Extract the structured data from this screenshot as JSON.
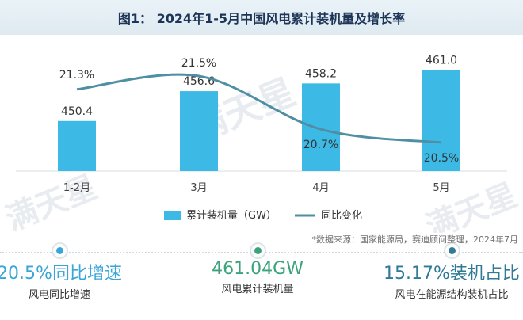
{
  "title": "图1：  2024年1-5月中国风电累计装机量及增长率",
  "source": "*数据来源：国家能源局，赛迪顾问整理，2024年7月",
  "watermark": "满天星",
  "colors": {
    "bar": "#3db9e6",
    "line": "#4e8fa3",
    "kpi1": "#3aa6d8",
    "kpi2": "#3aa37a",
    "kpi3": "#2f7a96"
  },
  "chart_data": {
    "type": "bar",
    "title": "图1：  2024年1-5月中国风电累计装机量及增长率",
    "categories": [
      "1-2月",
      "3月",
      "4月",
      "5月"
    ],
    "series": [
      {
        "name": "累计装机量（GW）",
        "type": "bar",
        "values": [
          450.4,
          456.6,
          458.2,
          461.0
        ],
        "labels": [
          "450.4",
          "456.6",
          "458.2",
          "461.0"
        ]
      },
      {
        "name": "同比变化",
        "type": "line",
        "values": [
          21.3,
          21.5,
          20.7,
          20.5
        ],
        "labels": [
          "21.3%",
          "21.5%",
          "20.7%",
          "20.5%"
        ]
      }
    ],
    "ylim_bar": [
      440,
      465
    ],
    "ylim_line": [
      20.0,
      22.0
    ],
    "legend_position": "bottom-center",
    "grid": false
  },
  "kpis": [
    {
      "value": "20.5%同比增速",
      "label": "风电同比增速"
    },
    {
      "value": "461.04GW",
      "label": "风电累计装机量"
    },
    {
      "value": "15.17%装机占比",
      "label": "风电在能源结构装机占比"
    }
  ]
}
